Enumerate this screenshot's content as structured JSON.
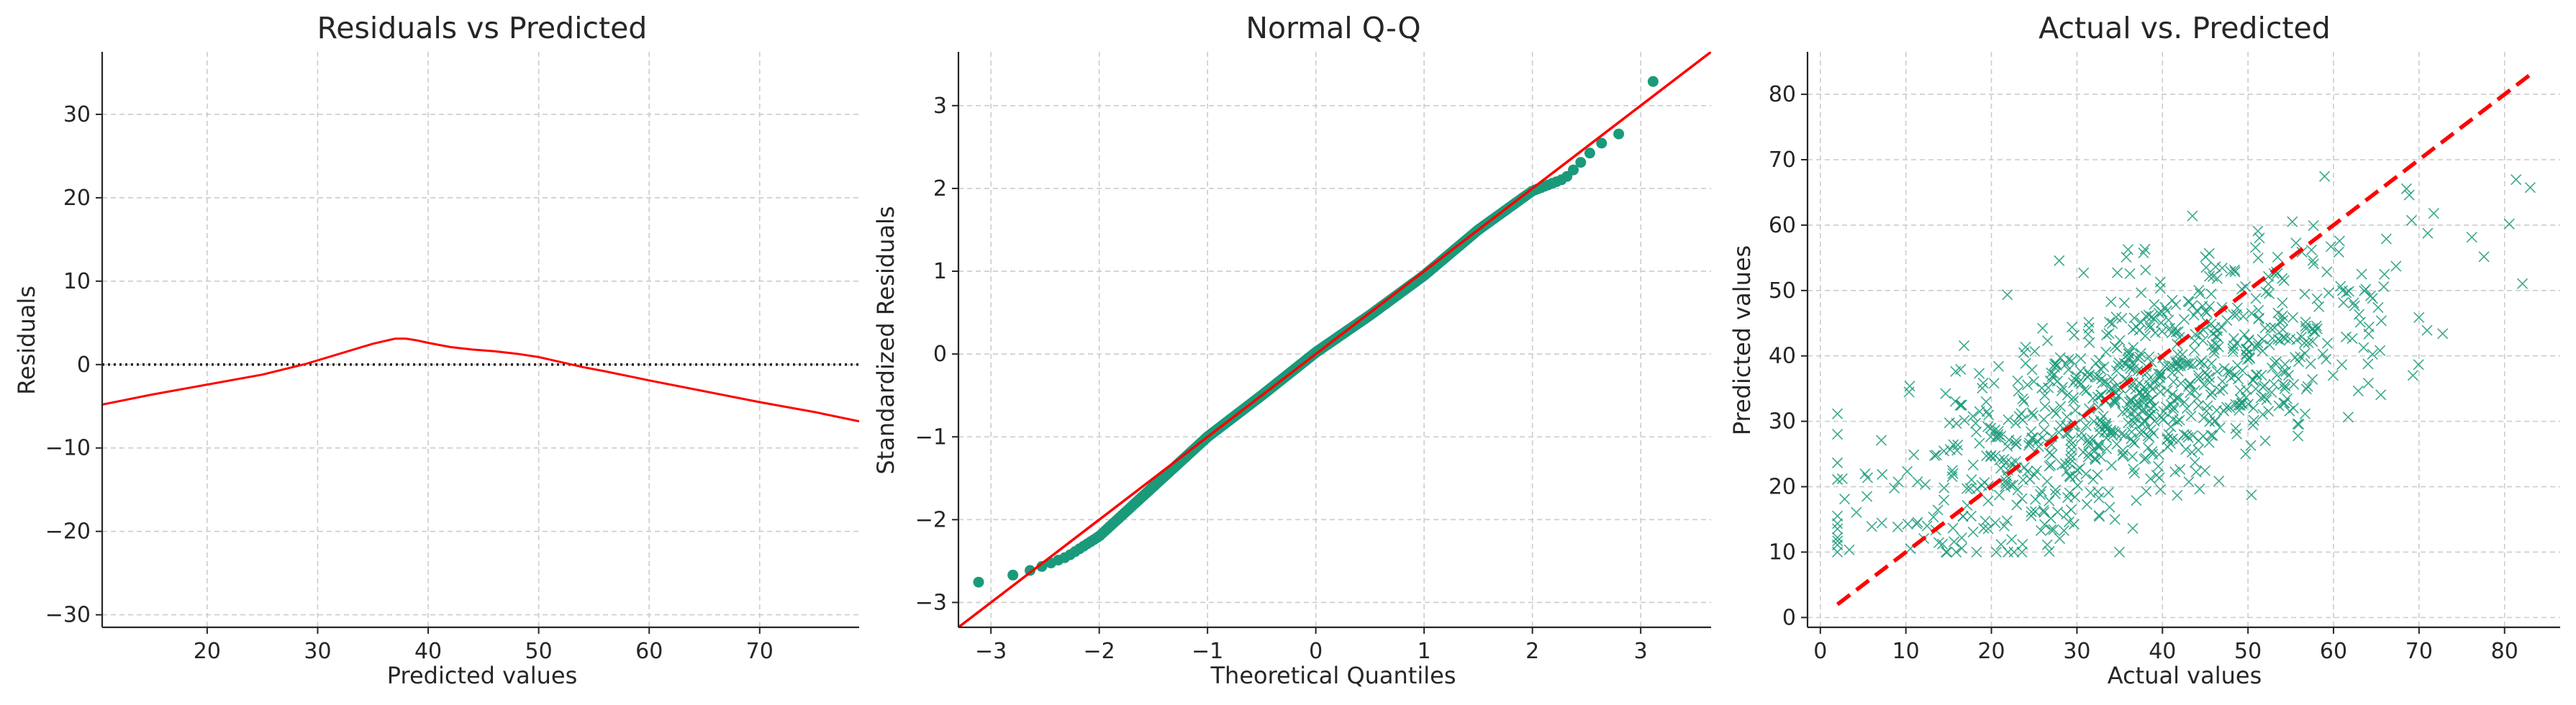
{
  "chart_data": [
    {
      "type": "line",
      "title": "Residuals vs Predicted",
      "xlabel": "Predicted values",
      "ylabel": "Residuals",
      "xlim": [
        10.5,
        79
      ],
      "ylim": [
        -31.5,
        37.5
      ],
      "xticks": [
        20,
        30,
        40,
        50,
        60,
        70
      ],
      "yticks": [
        -30,
        -20,
        -10,
        0,
        10,
        20,
        30
      ],
      "xtick_labels": [
        "20",
        "30",
        "40",
        "50",
        "60",
        "70"
      ],
      "ytick_labels": [
        "−30",
        "−20",
        "−10",
        "0",
        "10",
        "20",
        "30"
      ],
      "grid": true,
      "line_color": "#ff0000",
      "reference_color": "#222222",
      "reference_line": {
        "y": 0,
        "style": "dotted"
      },
      "series": [
        {
          "x": [
            10.5,
            15,
            20,
            25,
            29,
            32,
            35,
            37,
            38,
            39,
            40,
            42,
            44,
            46,
            48,
            50,
            52,
            54,
            56,
            60,
            65,
            70,
            75,
            79
          ],
          "y": [
            -4.8,
            -3.6,
            -2.4,
            -1.2,
            0.1,
            1.3,
            2.5,
            3.1,
            3.1,
            2.9,
            2.6,
            2.1,
            1.8,
            1.6,
            1.3,
            0.9,
            0.3,
            -0.3,
            -0.8,
            -1.9,
            -3.2,
            -4.5,
            -5.7,
            -6.8
          ]
        }
      ]
    },
    {
      "type": "scatter",
      "title": "Normal Q-Q",
      "xlabel": "Theoretical Quantiles",
      "ylabel": "Standardized Residuals",
      "xlim": [
        -3.3,
        3.65
      ],
      "ylim": [
        -3.3,
        3.65
      ],
      "xticks": [
        -3,
        -2,
        -1,
        0,
        1,
        2,
        3
      ],
      "yticks": [
        -3,
        -2,
        -1,
        0,
        1,
        2,
        3
      ],
      "xtick_labels": [
        "−3",
        "−2",
        "−1",
        "0",
        "1",
        "2",
        "3"
      ],
      "ytick_labels": [
        "−3",
        "−2",
        "−1",
        "0",
        "1",
        "2",
        "3"
      ],
      "grid": true,
      "point_color": "#1a9a7a",
      "line_color": "#ff0000",
      "reference_line": {
        "slope": 1,
        "intercept": 0
      },
      "n_points": 800,
      "quantile_curve": {
        "x": [
          -3.2,
          -3.0,
          -2.8,
          -2.6,
          -2.3,
          -2.0,
          -1.5,
          -1.0,
          -0.5,
          0.0,
          0.5,
          1.0,
          1.5,
          2.0,
          2.3,
          2.6,
          2.8,
          3.0,
          3.2
        ],
        "y": [
          -2.78,
          -2.72,
          -2.67,
          -2.6,
          -2.45,
          -2.2,
          -1.6,
          -1.0,
          -0.5,
          0.02,
          0.47,
          0.95,
          1.5,
          1.97,
          2.12,
          2.52,
          2.66,
          3.2,
          3.36
        ]
      }
    },
    {
      "type": "scatter",
      "title": "Actual vs. Predicted",
      "xlabel": "Actual values",
      "ylabel": "Predicted values",
      "xlim": [
        -1.5,
        86.5
      ],
      "ylim": [
        -1.5,
        86.5
      ],
      "xticks": [
        0,
        10,
        20,
        30,
        40,
        50,
        60,
        70,
        80
      ],
      "yticks": [
        0,
        10,
        20,
        30,
        40,
        50,
        60,
        70,
        80
      ],
      "xtick_labels": [
        "0",
        "10",
        "20",
        "30",
        "40",
        "50",
        "60",
        "70",
        "80"
      ],
      "ytick_labels": [
        "0",
        "10",
        "20",
        "30",
        "40",
        "50",
        "60",
        "70",
        "80"
      ],
      "grid": true,
      "marker": "x",
      "point_color": "#1a9a7a",
      "line_color": "#ff0000",
      "reference_line": {
        "x": [
          2,
          83
        ],
        "y": [
          2,
          83
        ],
        "style": "dashed"
      },
      "n_points": 900,
      "trend": {
        "slope": 0.55,
        "intercept": 13.5,
        "spread": 8.5,
        "x_center": 38,
        "x_sd": 15,
        "x_range": [
          2,
          83
        ]
      }
    }
  ]
}
